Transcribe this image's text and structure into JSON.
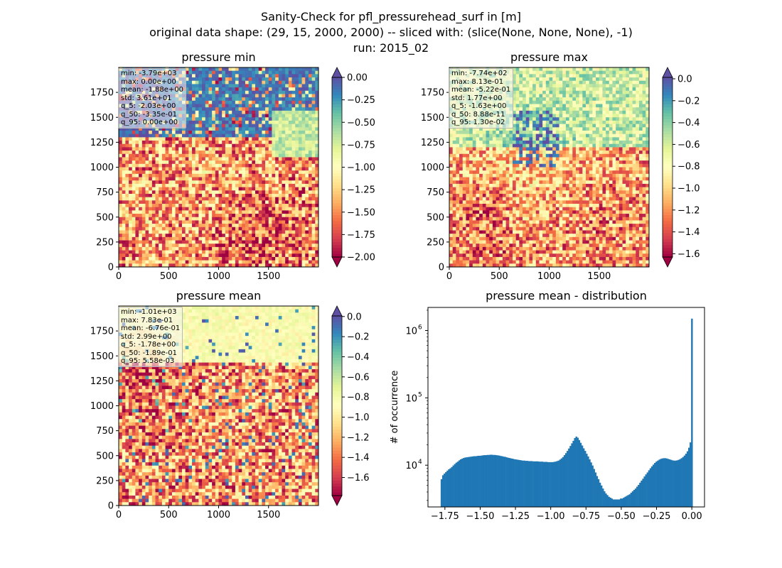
{
  "figure": {
    "title_line1": "Sanity-Check for pfl_pressurehead_surf in [m]",
    "title_line2": "original data shape: (29, 15, 2000, 2000) -- sliced with: (slice(None, None, None), -1)",
    "title_line3": "run: 2015_02"
  },
  "colors": {
    "histogram_bar": "#1f77b4",
    "colormap": "Spectral"
  },
  "maps": [
    {
      "title": "pressure min",
      "stats": [
        "min: -3.79e+03",
        "max: 0.00e+00",
        "mean: -1.88e+00",
        "std: 3.61e+01",
        "q_5: -2.03e+00",
        "q_50: -3.35e-01",
        "q_95: 0.00e+00"
      ],
      "x_ticks": [
        "0",
        "500",
        "1000",
        "1500"
      ],
      "y_ticks": [
        "0",
        "250",
        "500",
        "750",
        "1000",
        "1250",
        "1500",
        "1750"
      ],
      "colorbar": {
        "vmin": -2.0,
        "vmax": 0.0,
        "ticks": [
          "0.00",
          "−0.25",
          "−0.50",
          "−0.75",
          "−1.00",
          "−1.25",
          "−1.50",
          "−1.75",
          "−2.00"
        ],
        "extend": "both"
      }
    },
    {
      "title": "pressure max",
      "stats": [
        "min: -7.74e+02",
        "max: 8.13e-01",
        "mean: -5.22e-01",
        "std: 1.77e+00",
        "q_5: -1.63e+00",
        "q_50: 8.88e-11",
        "q_95: 1.30e-02"
      ],
      "x_ticks": [
        "0",
        "500",
        "1000",
        "1500"
      ],
      "y_ticks": [
        "0",
        "250",
        "500",
        "750",
        "1000",
        "1250",
        "1500",
        "1750"
      ],
      "colorbar": {
        "vmin": -1.63,
        "vmax": 0.013,
        "ticks": [
          "0.0",
          "−0.2",
          "−0.4",
          "−0.6",
          "−0.8",
          "−1.0",
          "−1.2",
          "−1.4",
          "−1.6"
        ],
        "extend": "both"
      }
    },
    {
      "title": "pressure mean",
      "stats": [
        "min: -1.01e+03",
        "max: 7.83e-01",
        "mean: -6.76e-01",
        "std: 2.99e+00",
        "q_5: -1.78e+00",
        "q_50: -1.89e-01",
        "q_95: 5.58e-03"
      ],
      "x_ticks": [
        "0",
        "500",
        "1000",
        "1500"
      ],
      "y_ticks": [
        "0",
        "250",
        "500",
        "750",
        "1000",
        "1250",
        "1500",
        "1750"
      ],
      "colorbar": {
        "vmin": -1.78,
        "vmax": 0.00558,
        "ticks": [
          "0.0",
          "−0.2",
          "−0.4",
          "−0.6",
          "−0.8",
          "−1.0",
          "−1.2",
          "−1.4",
          "−1.6"
        ],
        "extend": "both"
      }
    }
  ],
  "chart_data": {
    "type": "bar",
    "title": "pressure mean - distribution",
    "xlabel": "",
    "ylabel": "# of occurrence",
    "y_scale": "log",
    "xlim": [
      -1.87,
      0.09
    ],
    "ylim": [
      2400,
      2200000
    ],
    "x_ticks": [
      "−1.75",
      "−1.50",
      "−1.25",
      "−1.00",
      "−0.75",
      "−0.50",
      "−0.25",
      "0.00"
    ],
    "y_ticks": [
      "10",
      "10",
      "10"
    ],
    "y_tick_exponents": [
      "4",
      "5",
      "6"
    ],
    "bin_range": [
      -1.78,
      0.0055
    ],
    "bin_count": 180,
    "counts": [
      6200,
      7100,
      7500,
      7900,
      8300,
      8700,
      9000,
      9400,
      9900,
      10400,
      10900,
      11300,
      11800,
      12200,
      12500,
      12800,
      13000,
      13100,
      13200,
      13300,
      13400,
      13500,
      13600,
      13600,
      13700,
      13800,
      13800,
      13900,
      14000,
      14100,
      14100,
      14200,
      14200,
      14300,
      14300,
      14200,
      14200,
      14100,
      14000,
      13900,
      13700,
      13600,
      13400,
      13300,
      13100,
      12900,
      12800,
      12600,
      12500,
      12300,
      12200,
      12100,
      12000,
      11900,
      11800,
      11700,
      11700,
      11600,
      11600,
      11500,
      11500,
      11500,
      11400,
      11400,
      11400,
      11400,
      11300,
      11300,
      11300,
      11200,
      11200,
      11200,
      11100,
      11100,
      11100,
      11100,
      11200,
      11300,
      11500,
      11700,
      12100,
      12600,
      13200,
      14100,
      15100,
      16300,
      17700,
      19300,
      21100,
      23000,
      25300,
      26600,
      25600,
      23600,
      21500,
      19600,
      17800,
      16300,
      14800,
      13500,
      12200,
      11000,
      9900,
      8800,
      7800,
      6900,
      6200,
      5500,
      5000,
      4500,
      4100,
      3800,
      3600,
      3400,
      3300,
      3200,
      3100,
      3100,
      3100,
      3100,
      3100,
      3200,
      3200,
      3300,
      3400,
      3500,
      3600,
      3700,
      3900,
      4100,
      4300,
      4500,
      4800,
      5100,
      5500,
      5900,
      6300,
      6800,
      7300,
      7800,
      8400,
      9000,
      9600,
      10200,
      10800,
      11300,
      11700,
      12100,
      12400,
      12600,
      12700,
      12700,
      12600,
      12400,
      12200,
      12000,
      11800,
      11700,
      11700,
      11800,
      12000,
      12300,
      12700,
      13200,
      13900,
      14800,
      16100,
      18200,
      21800,
      1500000
    ]
  }
}
